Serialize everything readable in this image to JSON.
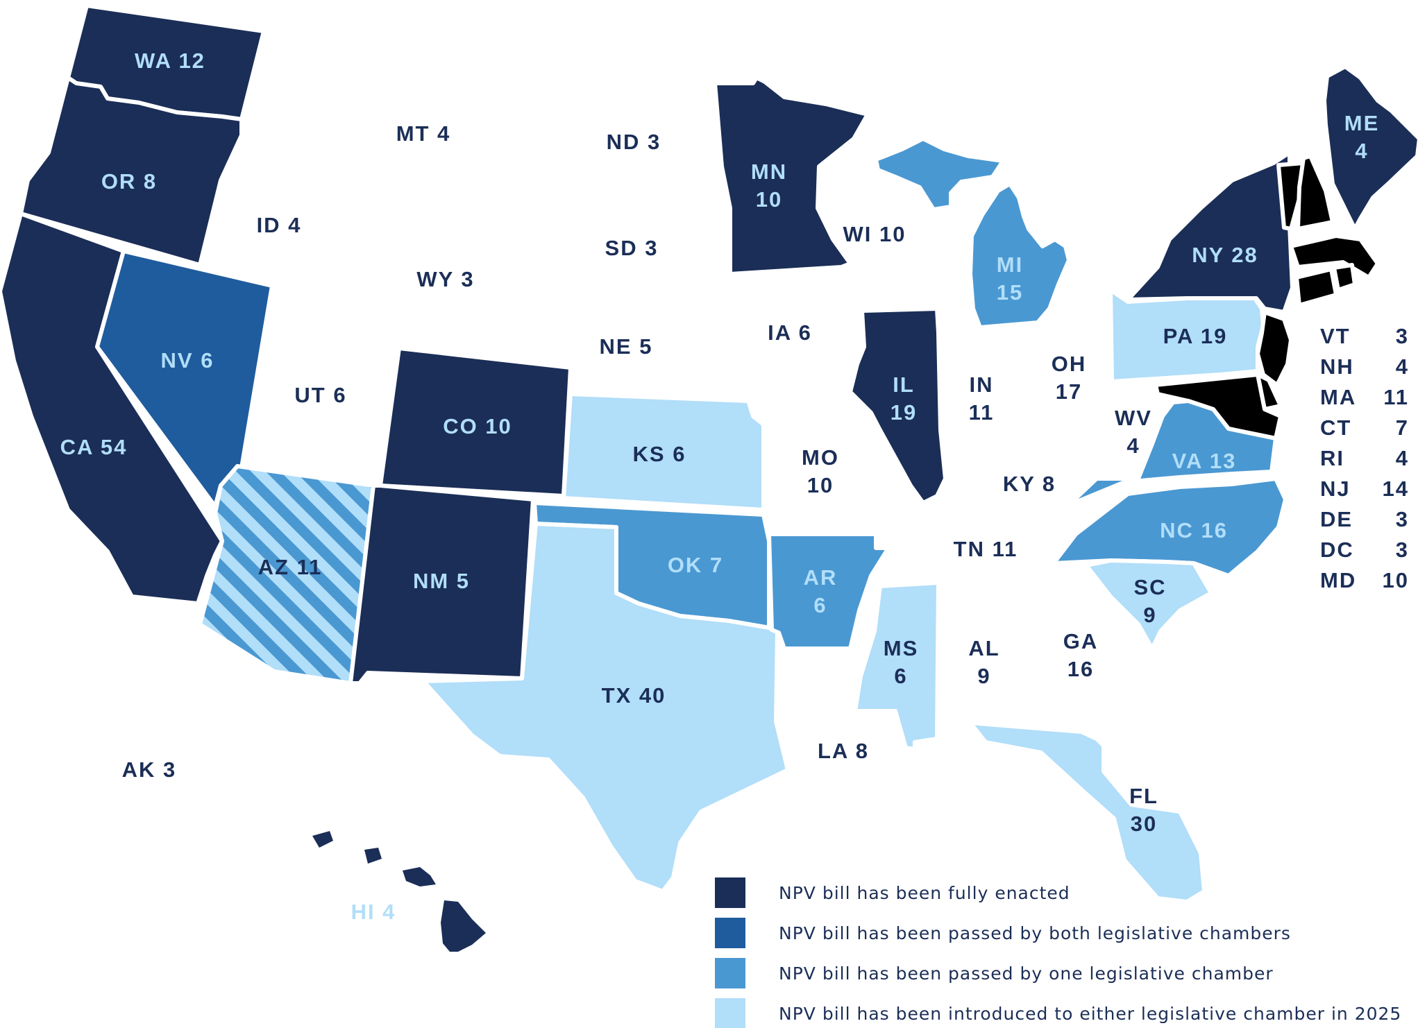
{
  "colors": {
    "enacted": "#1b2e57",
    "both_chambers": "#1f5c9d",
    "one_chamber": "#4a98d2",
    "introduced": "#b1def9",
    "none": "#ffffff",
    "label_dark": "#1b2e57",
    "label_light": "#b1def9",
    "border": "#ffffff"
  },
  "states": {
    "WA": {
      "label": "WA 12",
      "status": "enacted"
    },
    "OR": {
      "label": "OR 8",
      "status": "enacted"
    },
    "CA": {
      "label": "CA 54",
      "status": "enacted"
    },
    "NV": {
      "label": "NV 6",
      "status": "both_chambers"
    },
    "AZ": {
      "label": "AZ 11",
      "status": "striped"
    },
    "CO": {
      "label": "CO 10",
      "status": "enacted"
    },
    "NM": {
      "label": "NM 5",
      "status": "enacted"
    },
    "KS": {
      "label": "KS 6",
      "status": "introduced"
    },
    "OK": {
      "label": "OK 7",
      "status": "one_chamber"
    },
    "TX": {
      "label": "TX 40",
      "status": "introduced"
    },
    "AR": {
      "line1": "AR",
      "line2": "6",
      "status": "one_chamber"
    },
    "MS": {
      "line1": "MS",
      "line2": "6",
      "status": "introduced"
    },
    "MN": {
      "line1": "MN",
      "line2": "10",
      "status": "enacted"
    },
    "WI_UP": {
      "status": "one_chamber"
    },
    "MI": {
      "line1": "MI",
      "line2": "15",
      "status": "one_chamber"
    },
    "IL": {
      "line1": "IL",
      "line2": "19",
      "status": "enacted"
    },
    "PA": {
      "label": "PA 19",
      "status": "introduced"
    },
    "NY": {
      "label": "NY 28",
      "status": "enacted"
    },
    "ME": {
      "line1": "ME",
      "line2": "4",
      "status": "enacted"
    },
    "VA": {
      "label": "VA 13",
      "status": "one_chamber"
    },
    "NC": {
      "label": "NC 16",
      "status": "one_chamber"
    },
    "SC": {
      "line1": "SC",
      "line2": "9",
      "status": "introduced"
    },
    "FL": {
      "line1": "FL",
      "line2": "30",
      "status": "introduced"
    },
    "HI": {
      "label": "HI 4",
      "status": "enacted"
    }
  },
  "plain_labels": {
    "MT": "MT 4",
    "ND": "ND 3",
    "ID": "ID 4",
    "SD": "SD 3",
    "WY": "WY 3",
    "NE": "NE 5",
    "IA": "IA 6",
    "UT": "UT 6",
    "WI": "WI 10",
    "IN_1": "IN",
    "IN_2": "11",
    "OH_1": "OH",
    "OH_2": "17",
    "WV_1": "WV",
    "WV_2": "4",
    "MO_1": "MO",
    "MO_2": "10",
    "KY": "KY 8",
    "TN": "TN 11",
    "AL_1": "AL",
    "AL_2": "9",
    "GA_1": "GA",
    "GA_2": "16",
    "LA": "LA 8",
    "AK": "AK 3"
  },
  "northeast_list": [
    {
      "abbr": "VT",
      "votes": "3"
    },
    {
      "abbr": "NH",
      "votes": "4"
    },
    {
      "abbr": "MA",
      "votes": "11"
    },
    {
      "abbr": "CT",
      "votes": "7"
    },
    {
      "abbr": "RI",
      "votes": "4"
    },
    {
      "abbr": "NJ",
      "votes": "14"
    },
    {
      "abbr": "DE",
      "votes": "3"
    },
    {
      "abbr": "DC",
      "votes": "3"
    },
    {
      "abbr": "MD",
      "votes": "10"
    }
  ],
  "legend": [
    {
      "status": "enacted",
      "text": "NPV bill has been fully enacted"
    },
    {
      "status": "both_chambers",
      "text": "NPV bill has been passed by both legislative chambers"
    },
    {
      "status": "one_chamber",
      "text": "NPV bill has been passed by one legislative chamber"
    },
    {
      "status": "introduced",
      "text": "NPV bill has been introduced to either legislative chamber in 2025"
    }
  ]
}
